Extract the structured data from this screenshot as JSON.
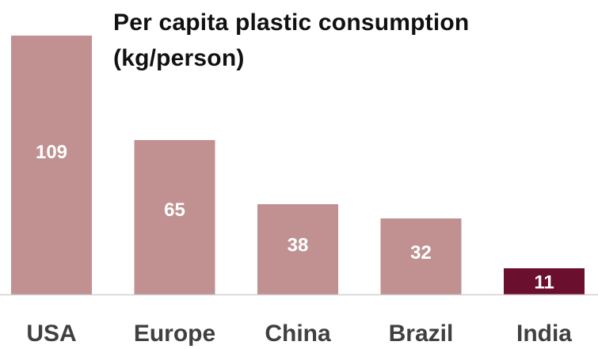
{
  "chart_data": {
    "type": "bar",
    "title": "Per capita plastic consumption (kg/person)",
    "xlabel": "",
    "ylabel": "",
    "categories": [
      "USA",
      "Europe",
      "China",
      "Brazil",
      "India"
    ],
    "values": [
      109,
      65,
      38,
      32,
      11
    ],
    "data_labels": [
      "109",
      "65",
      "38",
      "32",
      "11"
    ],
    "ylim": [
      0,
      124
    ],
    "grid": false,
    "legend": "none",
    "colors": {
      "bar_default": "#c09190",
      "bar_highlight": "#6b0f2e",
      "highlight_category": "India",
      "bar_label": "#ffffff",
      "category_label": "#404040",
      "baseline": "#d0d0d0"
    }
  }
}
